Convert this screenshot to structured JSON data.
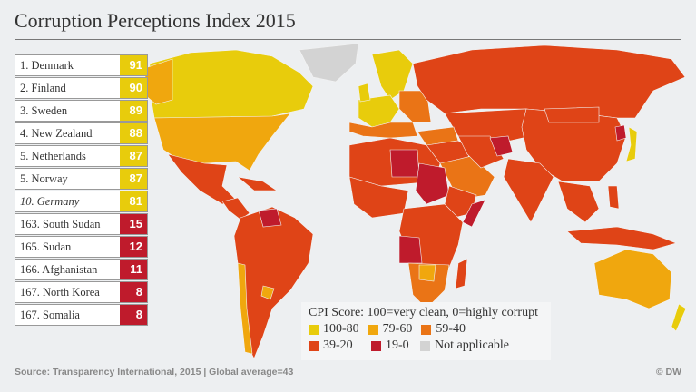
{
  "title": "Corruption Perceptions Index 2015",
  "colors": {
    "band_100_80": "#e8cc0c",
    "band_79_60": "#f0a70e",
    "band_59_40": "#ea7416",
    "band_39_20": "#df4417",
    "band_19_0": "#bf1b2c",
    "not_applicable": "#d3d3d3"
  },
  "ranking": [
    {
      "label": "1. Denmark",
      "score": "91",
      "band": "band_100_80",
      "italic": false
    },
    {
      "label": "2. Finland",
      "score": "90",
      "band": "band_100_80",
      "italic": false
    },
    {
      "label": "3. Sweden",
      "score": "89",
      "band": "band_100_80",
      "italic": false
    },
    {
      "label": "4. New Zealand",
      "score": "88",
      "band": "band_100_80",
      "italic": false
    },
    {
      "label": "5. Netherlands",
      "score": "87",
      "band": "band_100_80",
      "italic": false
    },
    {
      "label": "5. Norway",
      "score": "87",
      "band": "band_100_80",
      "italic": false
    },
    {
      "label": "10. Germany",
      "score": "81",
      "band": "band_100_80",
      "italic": true
    },
    {
      "label": "163. South Sudan",
      "score": "15",
      "band": "band_19_0",
      "italic": false
    },
    {
      "label": "165. Sudan",
      "score": "12",
      "band": "band_19_0",
      "italic": false
    },
    {
      "label": "166. Afghanistan",
      "score": "11",
      "band": "band_19_0",
      "italic": false
    },
    {
      "label": "167. North Korea",
      "score": "8",
      "band": "band_19_0",
      "italic": false
    },
    {
      "label": "167. Somalia",
      "score": "8",
      "band": "band_19_0",
      "italic": false
    }
  ],
  "legend": {
    "title": "CPI Score: 100=very clean, 0=highly corrupt",
    "items": [
      {
        "label": "100-80",
        "band": "band_100_80"
      },
      {
        "label": "79-60",
        "band": "band_79_60"
      },
      {
        "label": "59-40",
        "band": "band_59_40"
      },
      {
        "label": "39-20",
        "band": "band_39_20"
      },
      {
        "label": "19-0",
        "band": "band_19_0"
      },
      {
        "label": "Not applicable",
        "band": "not_applicable"
      }
    ]
  },
  "footer": {
    "source": "Source: Transparency International, 2015 | Global average=43",
    "credit": "© DW"
  }
}
